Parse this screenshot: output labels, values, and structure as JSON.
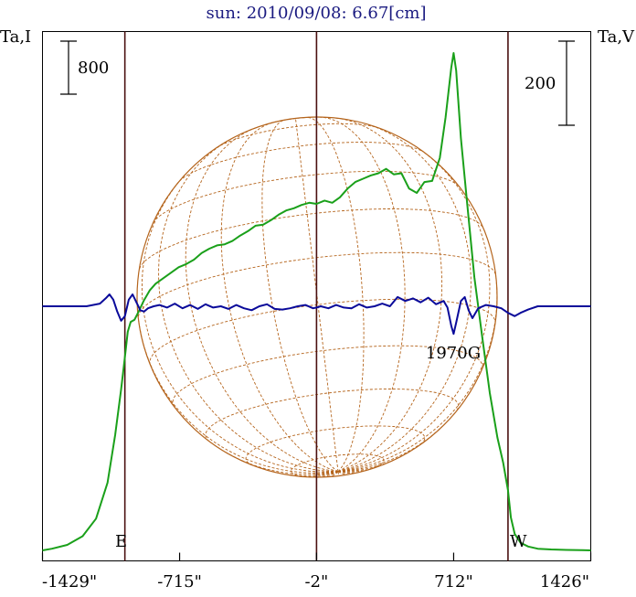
{
  "chart_data": {
    "type": "line",
    "title": "sun: 2010/09/08: 6.67[cm]",
    "left_axis_label": "Ta,I",
    "right_axis_label": "Ta,V",
    "left_scale_label": "800",
    "right_scale_label": "200",
    "xlim": [
      -1429,
      1426
    ],
    "x_ticks": [
      {
        "value": -1429,
        "label": "-1429\""
      },
      {
        "value": -715,
        "label": "-715\""
      },
      {
        "value": -2,
        "label": "-2\""
      },
      {
        "value": 712,
        "label": "712\""
      },
      {
        "value": 1426,
        "label": "1426\""
      }
    ],
    "vertical_lines": [
      -1000,
      -2,
      995
    ],
    "limb_labels": {
      "east": "E",
      "west": "W"
    },
    "annotation": {
      "text": "1970G",
      "x": 712
    },
    "colors": {
      "intensity": "#1aa01a",
      "polarization": "#0a0a9a",
      "limb_lines": "#4a1010",
      "disk_grid": "#b5651d",
      "title": "#1a1a80",
      "frame": "#000000"
    },
    "series": [
      {
        "name": "Ta,I",
        "x": [
          -1429,
          -1380,
          -1300,
          -1220,
          -1150,
          -1090,
          -1050,
          -1020,
          -1000,
          -985,
          -970,
          -950,
          -930,
          -900,
          -870,
          -840,
          -800,
          -760,
          -720,
          -680,
          -640,
          -600,
          -560,
          -520,
          -480,
          -440,
          -400,
          -360,
          -320,
          -280,
          -240,
          -200,
          -160,
          -120,
          -80,
          -40,
          -2,
          40,
          80,
          120,
          160,
          200,
          240,
          280,
          320,
          360,
          400,
          440,
          480,
          520,
          560,
          600,
          640,
          670,
          700,
          712,
          725,
          750,
          780,
          820,
          860,
          900,
          940,
          970,
          995,
          1010,
          1030,
          1060,
          1100,
          1150,
          1220,
          1300,
          1380,
          1426
        ],
        "y": [
          0,
          15,
          50,
          130,
          290,
          620,
          1060,
          1470,
          1770,
          2000,
          2090,
          2110,
          2180,
          2290,
          2380,
          2440,
          2490,
          2540,
          2590,
          2620,
          2660,
          2720,
          2760,
          2790,
          2800,
          2830,
          2880,
          2920,
          2970,
          2980,
          3020,
          3070,
          3110,
          3130,
          3160,
          3180,
          3170,
          3200,
          3180,
          3230,
          3310,
          3370,
          3400,
          3430,
          3450,
          3490,
          3440,
          3450,
          3310,
          3270,
          3370,
          3380,
          3590,
          3960,
          4420,
          4550,
          4390,
          3770,
          3220,
          2500,
          1960,
          1440,
          1030,
          800,
          550,
          300,
          150,
          70,
          35,
          15,
          8,
          4,
          2,
          0
        ]
      },
      {
        "name": "Ta,V",
        "x": [
          -1429,
          -1300,
          -1200,
          -1130,
          -1100,
          -1080,
          -1060,
          -1040,
          -1020,
          -1000,
          -980,
          -960,
          -940,
          -920,
          -900,
          -880,
          -850,
          -820,
          -780,
          -740,
          -700,
          -660,
          -620,
          -580,
          -540,
          -500,
          -460,
          -420,
          -380,
          -340,
          -300,
          -260,
          -220,
          -180,
          -140,
          -100,
          -60,
          -20,
          -2,
          20,
          60,
          100,
          140,
          180,
          220,
          260,
          300,
          340,
          380,
          420,
          460,
          500,
          540,
          580,
          620,
          660,
          680,
          700,
          712,
          725,
          750,
          770,
          790,
          810,
          840,
          880,
          920,
          960,
          995,
          1030,
          1060,
          1100,
          1150,
          1220,
          1300,
          1426
        ],
        "y": [
          0,
          0,
          0,
          4,
          12,
          18,
          10,
          -8,
          -22,
          -15,
          10,
          18,
          6,
          -6,
          -8,
          -3,
          0,
          2,
          -2,
          4,
          -3,
          2,
          -4,
          3,
          -2,
          0,
          -4,
          2,
          -3,
          -6,
          0,
          3,
          -4,
          -5,
          -3,
          0,
          2,
          -3,
          -2,
          0,
          -3,
          2,
          -2,
          -3,
          3,
          -2,
          0,
          4,
          0,
          14,
          8,
          12,
          6,
          13,
          3,
          8,
          -2,
          -30,
          -42,
          -25,
          8,
          14,
          -6,
          -18,
          -3,
          2,
          0,
          -3,
          -10,
          -15,
          -10,
          -5,
          0,
          0,
          0,
          0
        ]
      }
    ]
  }
}
